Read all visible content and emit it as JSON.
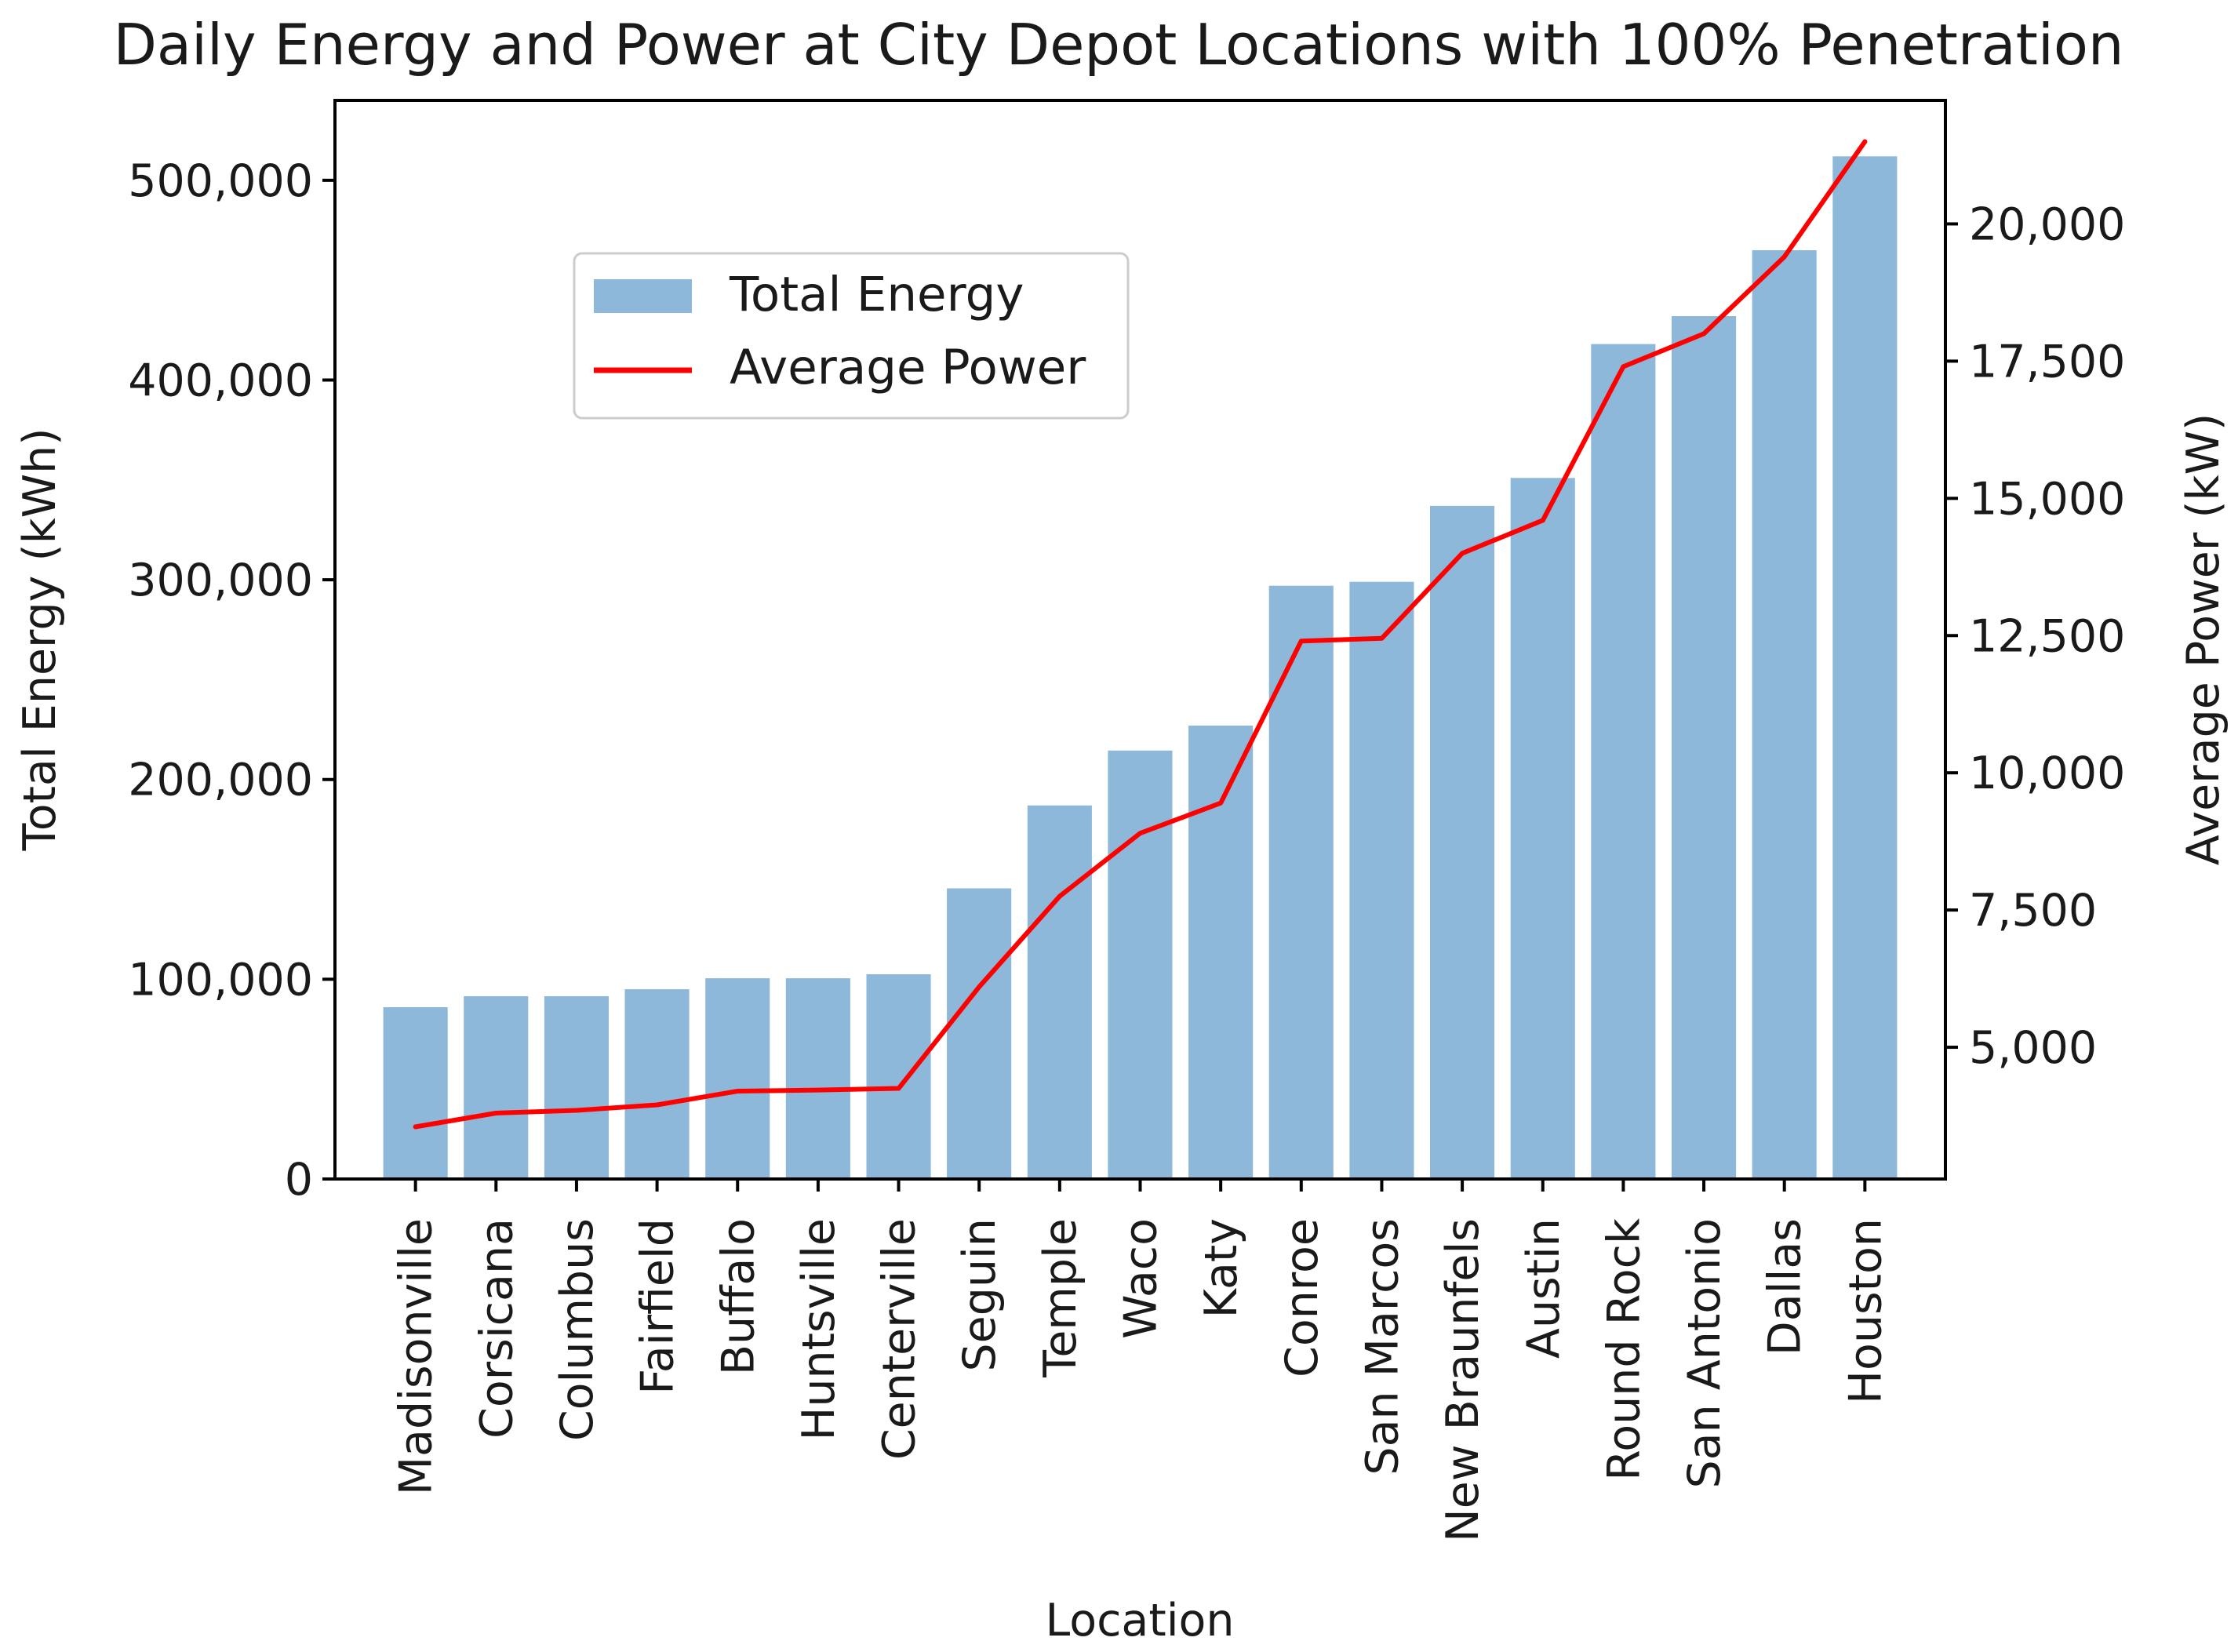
{
  "chart_data": {
    "type": "bar",
    "title": "Daily Energy and Power at City Depot Locations with 100% Penetration",
    "xlabel": "Location",
    "ylabel": "Total Energy (kWh)",
    "y2label": "Average Power (kW)",
    "categories": [
      "Madisonville",
      "Corsicana",
      "Columbus",
      "Fairfield",
      "Buffalo",
      "Huntsville",
      "Centerville",
      "Seguin",
      "Temple",
      "Waco",
      "Katy",
      "Conroe",
      "San Marcos",
      "New Braunfels",
      "Austin",
      "Round Rock",
      "San Antonio",
      "Dallas",
      "Houston"
    ],
    "ylim": [
      0,
      540000
    ],
    "y2lim": [
      2600,
      22250
    ],
    "yticks": [
      0,
      100000,
      200000,
      300000,
      400000,
      500000
    ],
    "ytick_labels": [
      "0",
      "100,000",
      "200,000",
      "300,000",
      "400,000",
      "500,000"
    ],
    "y2ticks": [
      5000,
      7500,
      10000,
      12500,
      15000,
      17500,
      20000
    ],
    "y2tick_labels": [
      "5,000",
      "7,500",
      "10,000",
      "12,500",
      "15,000",
      "17,500",
      "20,000"
    ],
    "grid": false,
    "legend_position": "upper-left",
    "series": [
      {
        "name": "Total Energy",
        "type": "bar",
        "axis": "left",
        "color": "#8db8da",
        "values": [
          86000,
          91500,
          91500,
          95000,
          100500,
          100500,
          102500,
          145500,
          187000,
          214500,
          227000,
          297000,
          299000,
          337000,
          351000,
          418000,
          432000,
          465000,
          512000
        ]
      },
      {
        "name": "Average Power",
        "type": "line",
        "axis": "right",
        "color": "#ff0000",
        "values": [
          3550,
          3800,
          3850,
          3950,
          4200,
          4220,
          4250,
          6100,
          7750,
          8900,
          9450,
          12400,
          12450,
          14000,
          14600,
          17400,
          18000,
          19400,
          21500
        ]
      }
    ]
  }
}
